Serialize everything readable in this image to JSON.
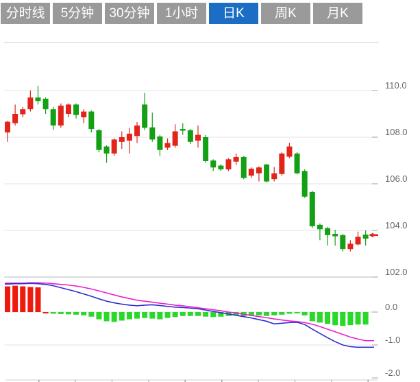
{
  "toolbar": {
    "tabs": [
      {
        "label": "分时线",
        "active": false
      },
      {
        "label": "5分钟",
        "active": false
      },
      {
        "label": "30分钟",
        "active": false
      },
      {
        "label": "1小时",
        "active": false
      },
      {
        "label": "日K",
        "active": true
      },
      {
        "label": "周K",
        "active": false
      },
      {
        "label": "月K",
        "active": false
      }
    ]
  },
  "colors": {
    "tab_bg": "#9a9a9a",
    "tab_active_bg": "#1b6ec3",
    "tab_text": "#ffffff",
    "candle_up": "#e2251a",
    "candle_down": "#14a014",
    "macd_up": "#ee1a0e",
    "macd_down": "#2ad82a",
    "dif_line": "#2c2cce",
    "dea_line": "#ee1dcf",
    "grid_light": "#e3e3e7",
    "grid_dark": "#b4b8c0",
    "top_border": "#c8ccd2",
    "bottom_axis": "#c9ccd4",
    "axis_tick": "#98a0aa",
    "axis_text": "#666666",
    "last_price_marker": "#e2251a"
  },
  "chart_data": {
    "type": "candlestick_with_macd",
    "title": "",
    "xlabel": "",
    "ylabel": "",
    "legend": [],
    "grid": true,
    "price_axis": {
      "side": "right",
      "range": [
        101.9,
        110.3
      ],
      "ticks": [
        {
          "label": "110.0",
          "value": 110
        },
        {
          "label": "108.0",
          "value": 108
        },
        {
          "label": "106.0",
          "value": 106
        },
        {
          "label": "104.0",
          "value": 104
        },
        {
          "label": "102.0",
          "value": 102
        }
      ]
    },
    "indicator_axis": {
      "side": "right",
      "range": [
        -2.1,
        1.0
      ],
      "ticks": [
        {
          "label": "0.0",
          "value": 0
        },
        {
          "label": "-1.0",
          "value": -1
        },
        {
          "label": "-2.0",
          "value": -2
        }
      ]
    },
    "candles_ohlc": [
      [
        108.2,
        108.7,
        107.8,
        108.66
      ],
      [
        108.6,
        109.4,
        108.5,
        109.0
      ],
      [
        108.98,
        109.3,
        108.85,
        109.2
      ],
      [
        109.2,
        110.0,
        109.1,
        109.7
      ],
      [
        109.7,
        110.2,
        109.4,
        109.55
      ],
      [
        109.65,
        109.7,
        109.0,
        109.2
      ],
      [
        109.2,
        109.3,
        108.3,
        108.5
      ],
      [
        108.5,
        109.45,
        108.4,
        109.35
      ],
      [
        109.0,
        109.45,
        108.85,
        109.4
      ],
      [
        109.4,
        109.45,
        108.8,
        108.95
      ],
      [
        108.85,
        109.2,
        108.6,
        109.1
      ],
      [
        109.1,
        109.15,
        108.2,
        108.35
      ],
      [
        108.3,
        108.35,
        107.35,
        107.45
      ],
      [
        107.6,
        107.65,
        106.9,
        107.3
      ],
      [
        107.3,
        107.95,
        107.2,
        107.9
      ],
      [
        107.8,
        108.25,
        107.5,
        108.0
      ],
      [
        107.85,
        108.4,
        107.3,
        108.15
      ],
      [
        108.05,
        108.65,
        107.75,
        108.5
      ],
      [
        109.4,
        109.9,
        108.3,
        108.4
      ],
      [
        108.42,
        109.05,
        107.8,
        107.9
      ],
      [
        108.03,
        108.1,
        107.2,
        107.45
      ],
      [
        107.55,
        107.95,
        107.45,
        107.75
      ],
      [
        107.63,
        108.55,
        107.55,
        108.25
      ],
      [
        108.35,
        108.6,
        108.1,
        108.28
      ],
      [
        108.3,
        108.35,
        107.7,
        107.8
      ],
      [
        107.85,
        108.5,
        107.55,
        108.1
      ],
      [
        108.0,
        108.1,
        106.9,
        106.97
      ],
      [
        107.0,
        107.05,
        106.55,
        106.7
      ],
      [
        106.78,
        106.85,
        106.55,
        106.62
      ],
      [
        106.62,
        107.1,
        106.55,
        107.05
      ],
      [
        106.95,
        107.3,
        106.8,
        107.15
      ],
      [
        107.15,
        107.2,
        106.2,
        106.25
      ],
      [
        106.35,
        106.7,
        106.25,
        106.65
      ],
      [
        106.45,
        106.75,
        106.1,
        106.7
      ],
      [
        106.83,
        106.85,
        106.05,
        106.1
      ],
      [
        106.2,
        106.72,
        106.1,
        106.45
      ],
      [
        106.42,
        107.35,
        106.35,
        107.3
      ],
      [
        107.16,
        107.76,
        107.1,
        107.6
      ],
      [
        107.3,
        107.35,
        106.4,
        106.45
      ],
      [
        106.55,
        106.62,
        105.4,
        105.45
      ],
      [
        105.65,
        105.7,
        104.1,
        104.18
      ],
      [
        104.24,
        104.3,
        103.58,
        104.05
      ],
      [
        104.1,
        104.15,
        103.35,
        103.8
      ],
      [
        103.85,
        104.03,
        103.35,
        103.75
      ],
      [
        103.8,
        103.85,
        103.1,
        103.2
      ],
      [
        103.2,
        103.58,
        103.1,
        103.43
      ],
      [
        103.4,
        103.95,
        103.35,
        103.73
      ],
      [
        103.82,
        104.0,
        103.35,
        103.65
      ]
    ],
    "macd": {
      "histogram": [
        0.78,
        0.8,
        0.78,
        0.76,
        0.75,
        -0.03,
        -0.05,
        -0.06,
        -0.07,
        -0.08,
        -0.1,
        -0.14,
        -0.22,
        -0.28,
        -0.3,
        -0.26,
        -0.22,
        -0.2,
        -0.18,
        -0.2,
        -0.22,
        -0.18,
        -0.15,
        -0.12,
        -0.12,
        -0.12,
        -0.14,
        -0.15,
        -0.14,
        -0.12,
        -0.1,
        -0.12,
        -0.12,
        -0.1,
        -0.12,
        -0.1,
        -0.08,
        -0.05,
        -0.04,
        -0.1,
        -0.28,
        -0.32,
        -0.36,
        -0.4,
        -0.42,
        -0.4,
        -0.38,
        -0.38
      ],
      "histogram_red_until_index": 5,
      "dif": [
        0.85,
        0.86,
        0.86,
        0.87,
        0.86,
        0.84,
        0.8,
        0.74,
        0.68,
        0.62,
        0.55,
        0.48,
        0.4,
        0.33,
        0.28,
        0.24,
        0.21,
        0.19,
        0.21,
        0.22,
        0.2,
        0.17,
        0.15,
        0.14,
        0.12,
        0.1,
        0.06,
        0.02,
        -0.02,
        -0.06,
        -0.1,
        -0.14,
        -0.18,
        -0.23,
        -0.28,
        -0.36,
        -0.34,
        -0.32,
        -0.31,
        -0.38,
        -0.52,
        -0.65,
        -0.78,
        -0.9,
        -1.0,
        -1.05,
        -1.07,
        -1.07
      ],
      "dea": [
        0.88,
        0.88,
        0.88,
        0.89,
        0.89,
        0.88,
        0.86,
        0.84,
        0.82,
        0.79,
        0.75,
        0.7,
        0.64,
        0.58,
        0.52,
        0.46,
        0.41,
        0.36,
        0.33,
        0.3,
        0.27,
        0.24,
        0.21,
        0.19,
        0.16,
        0.13,
        0.1,
        0.07,
        0.04,
        0.0,
        -0.03,
        -0.07,
        -0.1,
        -0.14,
        -0.17,
        -0.21,
        -0.24,
        -0.27,
        -0.29,
        -0.32,
        -0.37,
        -0.44,
        -0.52,
        -0.6,
        -0.68,
        -0.76,
        -0.82,
        -0.87
      ]
    },
    "last_price_marker": 103.8
  }
}
